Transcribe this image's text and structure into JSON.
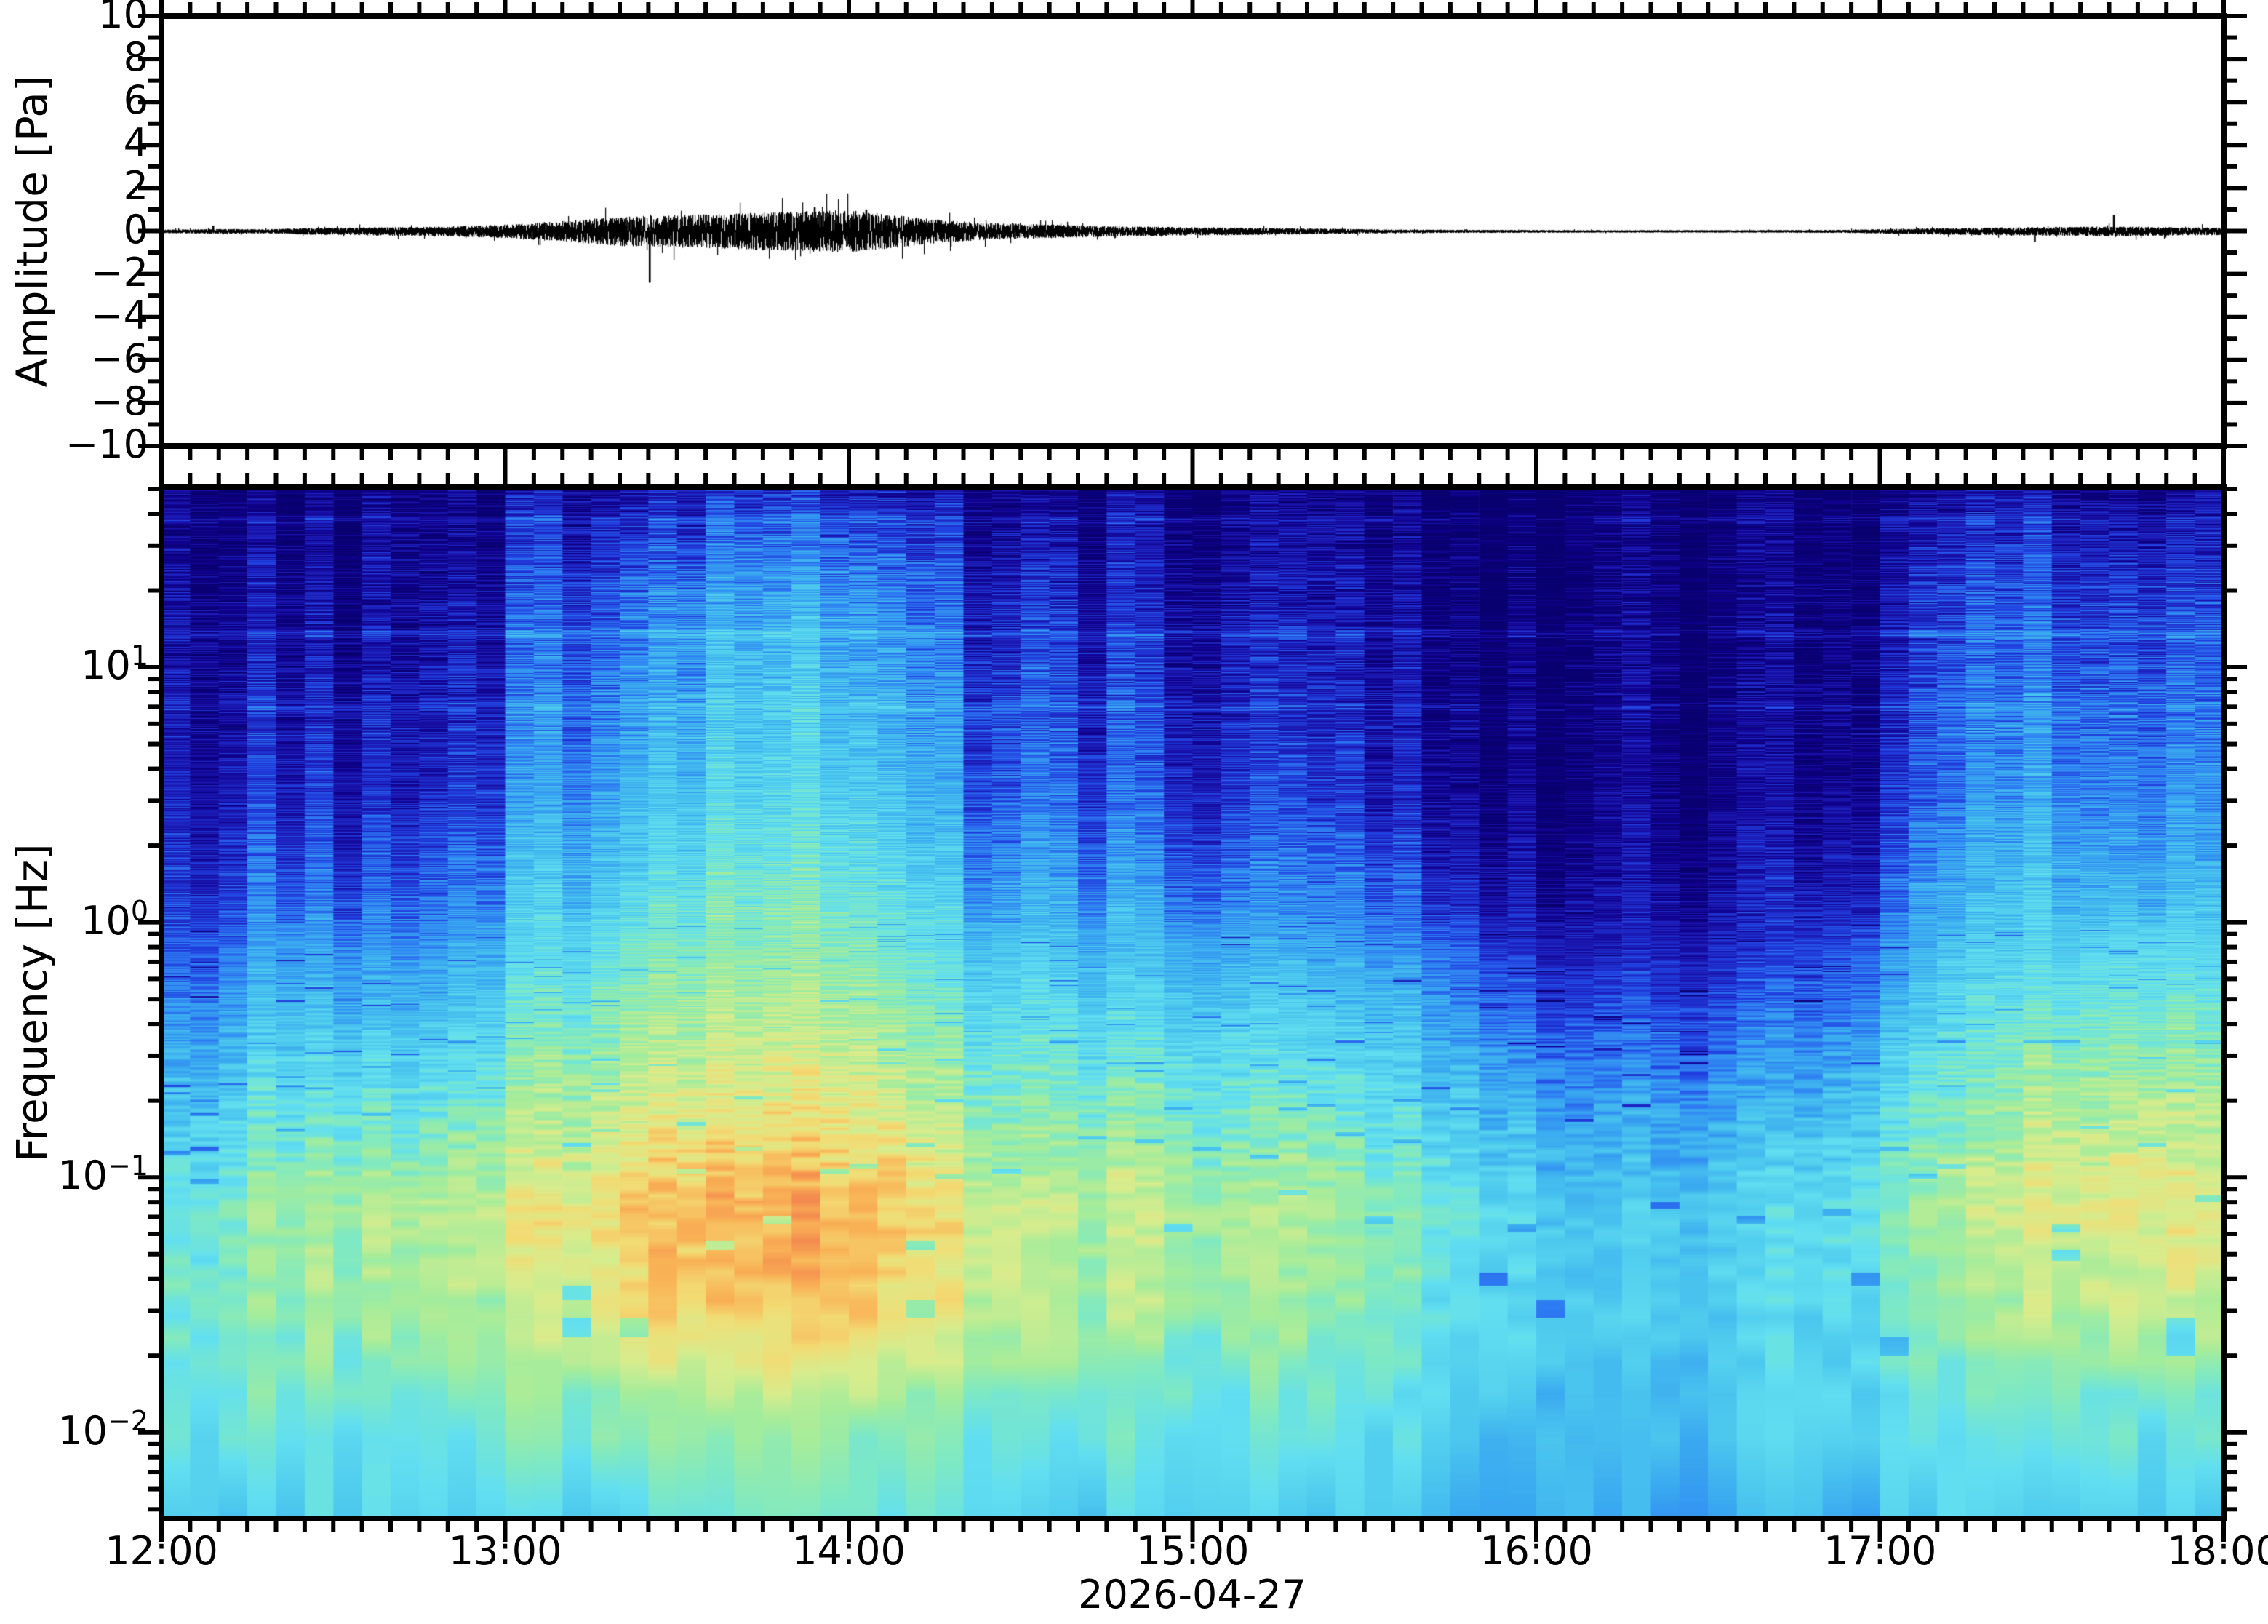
{
  "figure": {
    "date_label": "2026-04-27",
    "hour_labels": [
      "12:00",
      "13:00",
      "14:00",
      "15:00",
      "16:00",
      "17:00",
      "18:00"
    ],
    "top_axis": {
      "ylabel": "Amplitude [Pa]",
      "ymin": -10,
      "ymax": 10,
      "ytick_values": [
        10,
        8,
        6,
        4,
        2,
        0,
        -2,
        -4,
        -6,
        -8,
        -10
      ],
      "ytick_labels": [
        "10",
        "8",
        "6",
        "4",
        "2",
        "0",
        "−2",
        "−4",
        "−6",
        "−8",
        "−10"
      ]
    },
    "bottom_axis": {
      "ylabel": "Frequency [Hz]",
      "fmin_hz": 0.0046,
      "fmax_hz": 51,
      "major_tick_exponents": [
        "1",
        "0",
        "−1",
        "−2"
      ],
      "scale": "log"
    },
    "colors": {
      "background": "#ffffff",
      "axis": "#000000",
      "waveform": "#000000"
    }
  },
  "chart_data": [
    {
      "type": "line",
      "name": "infrasound-waveform",
      "units": "Pa",
      "x_range_hours": [
        12,
        18
      ],
      "ylim": [
        -10,
        10
      ],
      "envelope_pa": [
        [
          12.0,
          0.05
        ],
        [
          12.2,
          0.07
        ],
        [
          12.3,
          0.06
        ],
        [
          12.42,
          0.1
        ],
        [
          12.6,
          0.13
        ],
        [
          12.8,
          0.15
        ],
        [
          13.0,
          0.22
        ],
        [
          13.17,
          0.35
        ],
        [
          13.33,
          0.5
        ],
        [
          13.5,
          0.55
        ],
        [
          13.7,
          0.62
        ],
        [
          13.9,
          0.7
        ],
        [
          14.0,
          0.72
        ],
        [
          14.1,
          0.6
        ],
        [
          14.25,
          0.4
        ],
        [
          14.4,
          0.28
        ],
        [
          14.6,
          0.22
        ],
        [
          14.8,
          0.16
        ],
        [
          15.0,
          0.13
        ],
        [
          15.2,
          0.11
        ],
        [
          15.4,
          0.08
        ],
        [
          15.6,
          0.05
        ],
        [
          15.8,
          0.04
        ],
        [
          16.2,
          0.03
        ],
        [
          16.6,
          0.03
        ],
        [
          16.9,
          0.04
        ],
        [
          17.1,
          0.09
        ],
        [
          17.3,
          0.12
        ],
        [
          17.5,
          0.14
        ],
        [
          17.7,
          0.16
        ],
        [
          17.85,
          0.13
        ],
        [
          18.0,
          0.12
        ]
      ],
      "spikes_pa": [
        [
          13.42,
          -2.4
        ],
        [
          13.75,
          -0.9
        ],
        [
          13.9,
          1.1
        ],
        [
          14.05,
          1.0
        ],
        [
          12.15,
          0.25
        ],
        [
          17.45,
          -0.5
        ],
        [
          17.68,
          0.75
        ]
      ]
    },
    {
      "type": "heatmap",
      "name": "spectrogram",
      "time_start": "12:00",
      "time_end": "18:00",
      "time_step_min": 10,
      "freq_scale": "log",
      "freq_range_hz": [
        0.0046,
        51
      ],
      "freq_bands_hz": [
        50,
        20,
        10,
        4,
        1.5,
        0.6,
        0.25,
        0.1,
        0.04,
        0.015,
        0.006
      ],
      "grid": [
        [
          0.03,
          0.04,
          0.05,
          0.04,
          0.04,
          0.05,
          0.08,
          0.1,
          0.12,
          0.13,
          0.12,
          0.14,
          0.13,
          0.1,
          0.08,
          0.09,
          0.06,
          0.06,
          0.05,
          0.06,
          0.05,
          0.04,
          0.03,
          0.02,
          0.02,
          0.02,
          0.02,
          0.02,
          0.03,
          0.04,
          0.06,
          0.08,
          0.09,
          0.1,
          0.1,
          0.09
        ],
        [
          0.05,
          0.07,
          0.12,
          0.08,
          0.06,
          0.1,
          0.18,
          0.22,
          0.28,
          0.3,
          0.28,
          0.32,
          0.3,
          0.25,
          0.16,
          0.2,
          0.13,
          0.14,
          0.12,
          0.13,
          0.11,
          0.09,
          0.06,
          0.04,
          0.03,
          0.03,
          0.03,
          0.03,
          0.05,
          0.08,
          0.14,
          0.18,
          0.2,
          0.22,
          0.23,
          0.2
        ],
        [
          0.08,
          0.1,
          0.17,
          0.12,
          0.09,
          0.14,
          0.24,
          0.28,
          0.34,
          0.37,
          0.35,
          0.4,
          0.37,
          0.31,
          0.21,
          0.26,
          0.17,
          0.18,
          0.16,
          0.17,
          0.14,
          0.12,
          0.08,
          0.05,
          0.04,
          0.04,
          0.04,
          0.04,
          0.06,
          0.1,
          0.18,
          0.23,
          0.26,
          0.28,
          0.29,
          0.26
        ],
        [
          0.1,
          0.13,
          0.21,
          0.15,
          0.12,
          0.18,
          0.28,
          0.33,
          0.4,
          0.43,
          0.41,
          0.46,
          0.43,
          0.36,
          0.26,
          0.31,
          0.22,
          0.23,
          0.2,
          0.21,
          0.18,
          0.15,
          0.11,
          0.07,
          0.05,
          0.05,
          0.05,
          0.06,
          0.08,
          0.13,
          0.22,
          0.28,
          0.31,
          0.33,
          0.34,
          0.31
        ],
        [
          0.15,
          0.2,
          0.3,
          0.25,
          0.22,
          0.28,
          0.38,
          0.43,
          0.5,
          0.53,
          0.51,
          0.55,
          0.52,
          0.46,
          0.36,
          0.4,
          0.32,
          0.33,
          0.3,
          0.31,
          0.28,
          0.25,
          0.2,
          0.13,
          0.1,
          0.09,
          0.1,
          0.11,
          0.14,
          0.2,
          0.31,
          0.37,
          0.4,
          0.42,
          0.43,
          0.4
        ],
        [
          0.25,
          0.32,
          0.42,
          0.38,
          0.36,
          0.41,
          0.5,
          0.55,
          0.62,
          0.64,
          0.62,
          0.66,
          0.63,
          0.57,
          0.48,
          0.51,
          0.45,
          0.46,
          0.43,
          0.44,
          0.41,
          0.38,
          0.32,
          0.25,
          0.2,
          0.19,
          0.2,
          0.22,
          0.26,
          0.32,
          0.43,
          0.48,
          0.51,
          0.56,
          0.57,
          0.53
        ],
        [
          0.38,
          0.45,
          0.54,
          0.52,
          0.5,
          0.54,
          0.62,
          0.66,
          0.72,
          0.74,
          0.72,
          0.75,
          0.73,
          0.68,
          0.6,
          0.62,
          0.57,
          0.58,
          0.55,
          0.56,
          0.53,
          0.5,
          0.45,
          0.38,
          0.33,
          0.32,
          0.33,
          0.35,
          0.39,
          0.45,
          0.54,
          0.58,
          0.66,
          0.68,
          0.7,
          0.66
        ],
        [
          0.5,
          0.56,
          0.64,
          0.66,
          0.64,
          0.68,
          0.74,
          0.77,
          0.83,
          0.85,
          0.83,
          0.86,
          0.85,
          0.78,
          0.72,
          0.72,
          0.68,
          0.7,
          0.66,
          0.68,
          0.63,
          0.6,
          0.55,
          0.48,
          0.44,
          0.42,
          0.44,
          0.46,
          0.5,
          0.55,
          0.62,
          0.68,
          0.72,
          0.76,
          0.78,
          0.74
        ],
        [
          0.52,
          0.56,
          0.62,
          0.63,
          0.62,
          0.65,
          0.7,
          0.73,
          0.79,
          0.81,
          0.79,
          0.82,
          0.8,
          0.75,
          0.7,
          0.69,
          0.65,
          0.66,
          0.62,
          0.64,
          0.6,
          0.57,
          0.52,
          0.47,
          0.44,
          0.42,
          0.44,
          0.45,
          0.48,
          0.52,
          0.58,
          0.62,
          0.66,
          0.7,
          0.72,
          0.68
        ],
        [
          0.48,
          0.52,
          0.56,
          0.55,
          0.52,
          0.55,
          0.58,
          0.6,
          0.62,
          0.63,
          0.61,
          0.64,
          0.62,
          0.6,
          0.58,
          0.57,
          0.54,
          0.55,
          0.52,
          0.54,
          0.51,
          0.49,
          0.46,
          0.43,
          0.42,
          0.4,
          0.42,
          0.43,
          0.45,
          0.47,
          0.5,
          0.52,
          0.54,
          0.56,
          0.57,
          0.54
        ],
        [
          0.42,
          0.46,
          0.48,
          0.47,
          0.44,
          0.46,
          0.49,
          0.5,
          0.52,
          0.53,
          0.51,
          0.53,
          0.52,
          0.5,
          0.49,
          0.48,
          0.46,
          0.47,
          0.44,
          0.46,
          0.43,
          0.42,
          0.4,
          0.38,
          0.37,
          0.36,
          0.37,
          0.38,
          0.39,
          0.41,
          0.43,
          0.44,
          0.45,
          0.47,
          0.48,
          0.46
        ]
      ],
      "spectral_lines_hz": [
        {
          "f": 38,
          "boost": 0.05
        },
        {
          "f": 13.5,
          "boost": 0.06
        },
        {
          "f": 7,
          "boost": 0.04
        }
      ],
      "colormap_stops": [
        [
          0.0,
          "#08006e"
        ],
        [
          0.06,
          "#10008c"
        ],
        [
          0.13,
          "#1c1ab5"
        ],
        [
          0.2,
          "#2140e0"
        ],
        [
          0.27,
          "#2e7cf2"
        ],
        [
          0.34,
          "#39a8f0"
        ],
        [
          0.42,
          "#4cc8ee"
        ],
        [
          0.5,
          "#62dff0"
        ],
        [
          0.57,
          "#7fe9c2"
        ],
        [
          0.64,
          "#a5ec9b"
        ],
        [
          0.72,
          "#d7ec8d"
        ],
        [
          0.79,
          "#f2dc74"
        ],
        [
          0.86,
          "#f9b055"
        ],
        [
          0.93,
          "#f2854e"
        ],
        [
          1.0,
          "#dc4a38"
        ]
      ]
    }
  ]
}
